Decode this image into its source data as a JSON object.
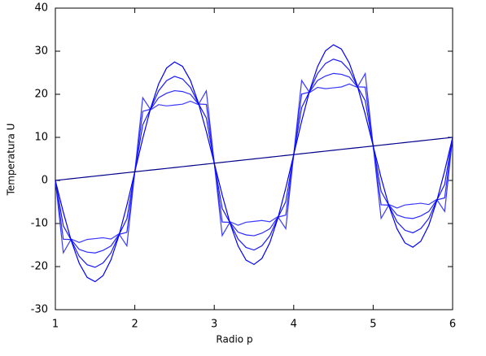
{
  "chart_data": {
    "type": "line",
    "xlabel": "Radio p",
    "ylabel": "Temperatura U",
    "xlim": [
      1,
      6
    ],
    "ylim": [
      -30,
      40
    ],
    "xticks": [
      1,
      2,
      3,
      4,
      5,
      6
    ],
    "yticks": [
      -30,
      -20,
      -10,
      0,
      10,
      20,
      30,
      40
    ],
    "grid": false,
    "x": [
      1,
      1.1,
      1.2,
      1.3,
      1.4,
      1.5,
      1.6,
      1.7,
      1.8,
      1.9,
      2,
      2.1,
      2.2,
      2.3,
      2.4,
      2.5,
      2.6,
      2.7,
      2.8,
      2.9,
      3,
      3.1,
      3.2,
      3.3,
      3.4,
      3.5,
      3.6,
      3.7,
      3.8,
      3.9,
      4,
      4.1,
      4.2,
      4.3,
      4.4,
      4.5,
      4.6,
      4.7,
      4.8,
      4.9,
      5,
      5.1,
      5.2,
      5.3,
      5.4,
      5.5,
      5.6,
      5.7,
      5.8,
      5.9,
      6
    ],
    "series": [
      {
        "color": "#3a3aff",
        "values": [
          0,
          -16.8,
          -13.6,
          -14.4,
          -13.7,
          -13.5,
          -13.3,
          -13.6,
          -12.4,
          -15.2,
          2,
          19.2,
          16.4,
          17.6,
          17.3,
          17.5,
          17.7,
          18.4,
          17.6,
          20.8,
          4,
          -12.8,
          -9.6,
          -10.4,
          -9.7,
          -9.5,
          -9.3,
          -9.6,
          -8.4,
          -11.2,
          6,
          23.2,
          20.4,
          21.6,
          21.3,
          21.5,
          21.7,
          22.4,
          21.6,
          24.8,
          8,
          -8.8,
          -5.6,
          -6.4,
          -5.7,
          -5.5,
          -5.3,
          -5.6,
          -4.4,
          -7.2,
          10
        ]
      },
      {
        "color": "#2a2aff",
        "values": [
          0,
          -13.65,
          -13.73,
          -16.01,
          -16.64,
          -16.84,
          -16.24,
          -15.21,
          -12.53,
          -12.05,
          2,
          16.05,
          16.53,
          19.21,
          20.24,
          20.84,
          20.64,
          20.01,
          17.73,
          17.65,
          4,
          -9.65,
          -9.73,
          -12.01,
          -12.64,
          -12.84,
          -12.24,
          -11.21,
          -8.53,
          -8.05,
          6,
          20.05,
          20.53,
          23.21,
          24.24,
          24.84,
          24.64,
          24.01,
          21.73,
          21.65,
          8,
          -5.65,
          -5.73,
          -8.01,
          -8.64,
          -8.84,
          -8.24,
          -7.21,
          -4.53,
          -4.05,
          10
        ]
      },
      {
        "color": "#1a1aff",
        "values": [
          0,
          -10.52,
          -13.87,
          -17.61,
          -19.56,
          -20.16,
          -19.16,
          -16.81,
          -12.67,
          -8.92,
          2,
          12.92,
          16.67,
          20.81,
          23.16,
          24.16,
          23.56,
          21.61,
          17.87,
          14.52,
          4,
          -6.52,
          -9.87,
          -13.61,
          -15.56,
          -16.16,
          -15.16,
          -12.81,
          -8.67,
          -4.92,
          6,
          16.92,
          20.67,
          24.81,
          27.16,
          28.16,
          27.56,
          25.61,
          21.87,
          18.52,
          8,
          -2.52,
          -5.87,
          -9.61,
          -11.56,
          -12.16,
          -11.16,
          -8.81,
          -4.67,
          -0.92,
          10
        ]
      },
      {
        "color": "#0000ff",
        "values": [
          0,
          -7.37,
          -14.01,
          -19.22,
          -22.5,
          -23.5,
          -22.1,
          -18.42,
          -12.81,
          -5.77,
          2,
          9.77,
          16.81,
          22.42,
          26.1,
          27.5,
          26.5,
          23.22,
          18.01,
          11.37,
          4,
          -3.37,
          -10.01,
          -15.22,
          -18.5,
          -19.5,
          -18.1,
          -14.42,
          -8.81,
          -1.77,
          6,
          13.77,
          20.81,
          26.42,
          30.1,
          31.5,
          30.5,
          27.22,
          22.01,
          15.37,
          8,
          0.63,
          -6.01,
          -11.22,
          -14.5,
          -15.5,
          -14.1,
          -10.42,
          -4.81,
          2.23,
          10
        ]
      },
      {
        "color": "#00008b",
        "values": [
          0,
          0.2,
          0.4,
          0.6,
          0.8,
          1,
          1.2,
          1.4,
          1.6,
          1.8,
          2,
          2.2,
          2.4,
          2.6,
          2.8,
          3,
          3.2,
          3.4,
          3.6,
          3.8,
          4,
          4.2,
          4.4,
          4.6,
          4.8,
          5,
          5.2,
          5.4,
          5.6,
          5.8,
          6,
          6.2,
          6.4,
          6.6,
          6.8,
          7,
          7.2,
          7.4,
          7.6,
          7.8,
          8,
          8.2,
          8.4,
          8.6,
          8.8,
          9,
          9.2,
          9.4,
          9.6,
          9.8,
          10
        ]
      }
    ]
  }
}
